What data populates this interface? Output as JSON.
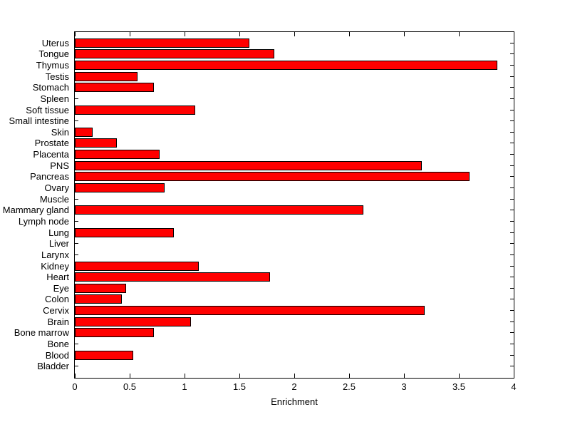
{
  "chart_data": {
    "type": "bar",
    "orientation": "horizontal",
    "title": "",
    "xlabel": "Enrichment",
    "ylabel": "",
    "xlim": [
      0,
      4
    ],
    "xticks": [
      0,
      0.5,
      1,
      1.5,
      2,
      2.5,
      3,
      3.5,
      4
    ],
    "xtick_labels": [
      "0",
      "0.5",
      "1",
      "1.5",
      "2",
      "2.5",
      "3",
      "3.5",
      "4"
    ],
    "grid": false,
    "legend": "none",
    "bar_color": "#FF0000",
    "bar_edge_color": "#000000",
    "axis_color": "#000000",
    "background_color": "#FFFFFF",
    "categories_top_to_bottom": [
      "Uterus",
      "Tongue",
      "Thymus",
      "Testis",
      "Stomach",
      "Spleen",
      "Soft tissue",
      "Small intestine",
      "Skin",
      "Prostate",
      "Placenta",
      "PNS",
      "Pancreas",
      "Ovary",
      "Muscle",
      "Mammary gland",
      "Lymph node",
      "Lung",
      "Liver",
      "Larynx",
      "Kidney",
      "Heart",
      "Eye",
      "Colon",
      "Cervix",
      "Brain",
      "Bone marrow",
      "Bone",
      "Blood",
      "Bladder"
    ],
    "values": [
      1.59,
      1.82,
      3.85,
      0.57,
      0.72,
      0,
      1.1,
      0,
      0.16,
      0.38,
      0.77,
      3.16,
      3.6,
      0.82,
      0,
      2.63,
      0,
      0.9,
      0,
      0,
      1.13,
      1.78,
      0.47,
      0.43,
      3.19,
      1.06,
      0.72,
      0,
      0.53,
      0
    ]
  }
}
